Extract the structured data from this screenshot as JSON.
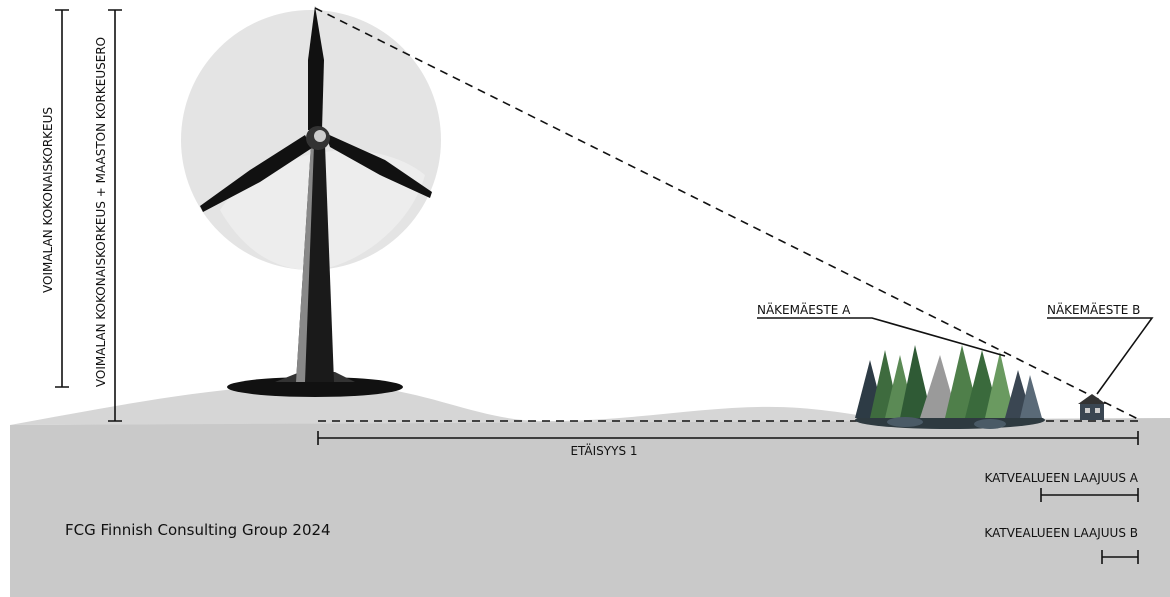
{
  "labels": {
    "total_height": "VOIMALAN KOKONAISKORKEUS",
    "total_height_terrain": "VOIMALAN KOKONAISKORKEUS + MAASTON KORKEUSERO",
    "obstacle_a": "NÄKEMÄESTE A",
    "obstacle_b": "NÄKEMÄESTE B",
    "distance": "ETÄISYYS 1",
    "shadow_a": "KATVEALUEEN LAAJUUS A",
    "shadow_b": "KATVEALUEEN LAAJUUS B",
    "credit": "FCG Finnish Consulting Group 2024"
  }
}
